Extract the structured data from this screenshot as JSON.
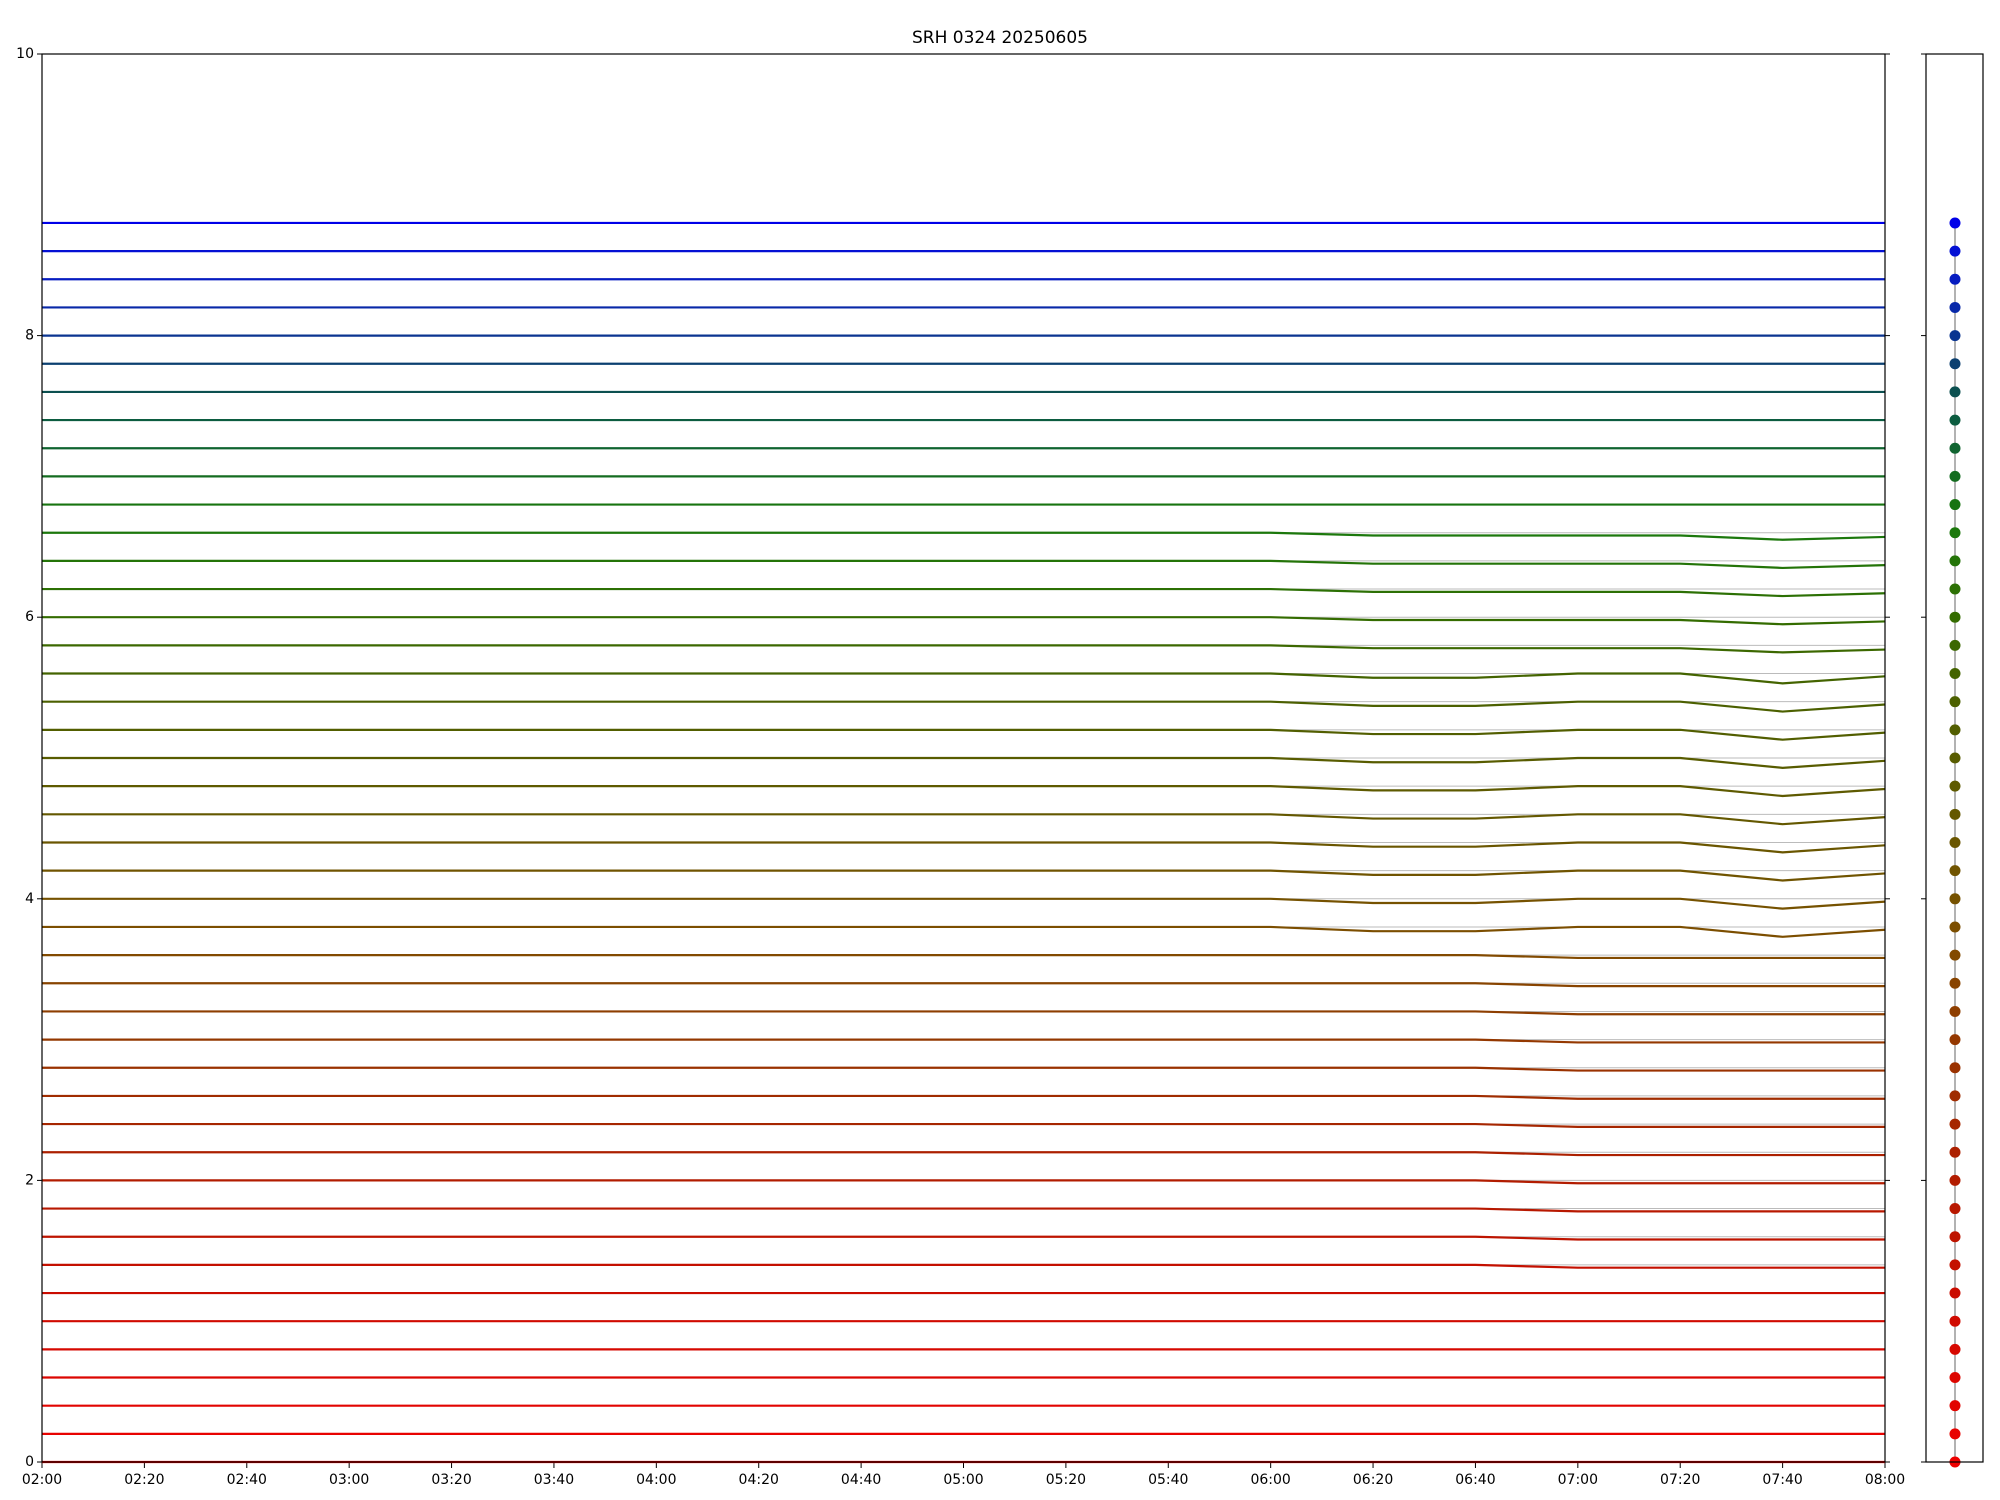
{
  "chart_data": {
    "type": "line",
    "title": "SRH 0324 20250605",
    "categories": [
      "02:00",
      "02:20",
      "02:40",
      "03:00",
      "03:20",
      "03:40",
      "04:00",
      "04:20",
      "04:40",
      "05:00",
      "05:20",
      "05:40",
      "06:00",
      "06:20",
      "06:40",
      "07:00",
      "07:20",
      "07:40",
      "08:00"
    ],
    "ylim": [
      0,
      10
    ],
    "yticks": [
      0,
      2,
      4,
      6,
      8,
      10
    ],
    "grid": true,
    "series": [
      {
        "color": "#ee0000",
        "values": [
          0,
          0,
          0,
          0,
          0,
          0,
          0,
          0,
          0,
          0,
          0,
          0,
          0,
          0,
          0,
          0,
          0,
          0,
          0
        ]
      },
      {
        "color": "#e80200",
        "values": [
          0.2,
          0.2,
          0.2,
          0.2,
          0.2,
          0.2,
          0.2,
          0.2,
          0.2,
          0.2,
          0.2,
          0.2,
          0.2,
          0.2,
          0.2,
          0.2,
          0.2,
          0.2,
          0.2
        ]
      },
      {
        "color": "#e20400",
        "values": [
          0.4,
          0.4,
          0.4,
          0.4,
          0.4,
          0.4,
          0.4,
          0.4,
          0.4,
          0.4,
          0.4,
          0.4,
          0.4,
          0.4,
          0.4,
          0.4,
          0.4,
          0.4,
          0.4
        ]
      },
      {
        "color": "#dc0600",
        "values": [
          0.6,
          0.6,
          0.6,
          0.6,
          0.6,
          0.6,
          0.6,
          0.6,
          0.6,
          0.6,
          0.6,
          0.6,
          0.6,
          0.6,
          0.6,
          0.6,
          0.6,
          0.6,
          0.6
        ]
      },
      {
        "color": "#d60800",
        "values": [
          0.8,
          0.8,
          0.8,
          0.8,
          0.8,
          0.8,
          0.8,
          0.8,
          0.8,
          0.8,
          0.8,
          0.8,
          0.8,
          0.8,
          0.8,
          0.8,
          0.8,
          0.8,
          0.8
        ]
      },
      {
        "color": "#d00a00",
        "values": [
          1,
          1,
          1,
          1,
          1,
          1,
          1,
          1,
          1,
          1,
          1,
          1,
          1,
          1,
          1,
          1,
          1,
          1,
          1
        ]
      },
      {
        "color": "#ca0c00",
        "values": [
          1.2,
          1.2,
          1.2,
          1.2,
          1.2,
          1.2,
          1.2,
          1.2,
          1.2,
          1.2,
          1.2,
          1.2,
          1.2,
          1.2,
          1.2,
          1.2,
          1.2,
          1.2,
          1.2
        ]
      },
      {
        "color": "#c41000",
        "values": [
          1.4,
          1.4,
          1.4,
          1.4,
          1.4,
          1.4,
          1.4,
          1.4,
          1.4,
          1.4,
          1.4,
          1.4,
          1.4,
          1.4,
          1.4,
          1.38,
          1.38,
          1.38,
          1.38
        ]
      },
      {
        "color": "#be1400",
        "values": [
          1.6,
          1.6,
          1.6,
          1.6,
          1.6,
          1.6,
          1.6,
          1.6,
          1.6,
          1.6,
          1.6,
          1.6,
          1.6,
          1.6,
          1.6,
          1.58,
          1.58,
          1.58,
          1.58
        ]
      },
      {
        "color": "#b81800",
        "values": [
          1.8,
          1.8,
          1.8,
          1.8,
          1.8,
          1.8,
          1.8,
          1.8,
          1.8,
          1.8,
          1.8,
          1.8,
          1.8,
          1.8,
          1.8,
          1.78,
          1.78,
          1.78,
          1.78
        ]
      },
      {
        "color": "#b21c00",
        "values": [
          2,
          2,
          2,
          2,
          2,
          2,
          2,
          2,
          2,
          2,
          2,
          2,
          2,
          2,
          2,
          1.98,
          1.98,
          1.98,
          1.98
        ]
      },
      {
        "color": "#ac2000",
        "values": [
          2.2,
          2.2,
          2.2,
          2.2,
          2.2,
          2.2,
          2.2,
          2.2,
          2.2,
          2.2,
          2.2,
          2.2,
          2.2,
          2.2,
          2.2,
          2.18,
          2.18,
          2.18,
          2.18
        ]
      },
      {
        "color": "#a62600",
        "values": [
          2.4,
          2.4,
          2.4,
          2.4,
          2.4,
          2.4,
          2.4,
          2.4,
          2.4,
          2.4,
          2.4,
          2.4,
          2.4,
          2.4,
          2.4,
          2.38,
          2.38,
          2.38,
          2.38
        ]
      },
      {
        "color": "#a02c00",
        "values": [
          2.6,
          2.6,
          2.6,
          2.6,
          2.6,
          2.6,
          2.6,
          2.6,
          2.6,
          2.6,
          2.6,
          2.6,
          2.6,
          2.6,
          2.6,
          2.58,
          2.58,
          2.58,
          2.58
        ]
      },
      {
        "color": "#9a3200",
        "values": [
          2.8,
          2.8,
          2.8,
          2.8,
          2.8,
          2.8,
          2.8,
          2.8,
          2.8,
          2.8,
          2.8,
          2.8,
          2.8,
          2.8,
          2.8,
          2.78,
          2.78,
          2.78,
          2.78
        ]
      },
      {
        "color": "#943800",
        "values": [
          3,
          3,
          3,
          3,
          3,
          3,
          3,
          3,
          3,
          3,
          3,
          3,
          3,
          3,
          3,
          2.98,
          2.98,
          2.98,
          2.98
        ]
      },
      {
        "color": "#8e3e00",
        "values": [
          3.2,
          3.2,
          3.2,
          3.2,
          3.2,
          3.2,
          3.2,
          3.2,
          3.2,
          3.2,
          3.2,
          3.2,
          3.2,
          3.2,
          3.2,
          3.18,
          3.18,
          3.18,
          3.18
        ]
      },
      {
        "color": "#884400",
        "values": [
          3.4,
          3.4,
          3.4,
          3.4,
          3.4,
          3.4,
          3.4,
          3.4,
          3.4,
          3.4,
          3.4,
          3.4,
          3.4,
          3.4,
          3.4,
          3.38,
          3.38,
          3.38,
          3.38
        ]
      },
      {
        "color": "#824a00",
        "values": [
          3.6,
          3.6,
          3.6,
          3.6,
          3.6,
          3.6,
          3.6,
          3.6,
          3.6,
          3.6,
          3.6,
          3.6,
          3.6,
          3.6,
          3.6,
          3.58,
          3.58,
          3.58,
          3.58
        ]
      },
      {
        "color": "#7c4e00",
        "values": [
          3.8,
          3.8,
          3.8,
          3.8,
          3.8,
          3.8,
          3.8,
          3.8,
          3.8,
          3.8,
          3.8,
          3.8,
          3.8,
          3.77,
          3.77,
          3.8,
          3.8,
          3.73,
          3.78
        ]
      },
      {
        "color": "#765200",
        "values": [
          4,
          4,
          4,
          4,
          4,
          4,
          4,
          4,
          4,
          4,
          4,
          4,
          4,
          3.97,
          3.97,
          4,
          4,
          3.93,
          3.98
        ]
      },
      {
        "color": "#705400",
        "values": [
          4.2,
          4.2,
          4.2,
          4.2,
          4.2,
          4.2,
          4.2,
          4.2,
          4.2,
          4.2,
          4.2,
          4.2,
          4.2,
          4.17,
          4.17,
          4.2,
          4.2,
          4.13,
          4.18
        ]
      },
      {
        "color": "#6a5600",
        "values": [
          4.4,
          4.4,
          4.4,
          4.4,
          4.4,
          4.4,
          4.4,
          4.4,
          4.4,
          4.4,
          4.4,
          4.4,
          4.4,
          4.37,
          4.37,
          4.4,
          4.4,
          4.33,
          4.38
        ]
      },
      {
        "color": "#645800",
        "values": [
          4.6,
          4.6,
          4.6,
          4.6,
          4.6,
          4.6,
          4.6,
          4.6,
          4.6,
          4.6,
          4.6,
          4.6,
          4.6,
          4.57,
          4.57,
          4.6,
          4.6,
          4.53,
          4.58
        ]
      },
      {
        "color": "#5e5a00",
        "values": [
          4.8,
          4.8,
          4.8,
          4.8,
          4.8,
          4.8,
          4.8,
          4.8,
          4.8,
          4.8,
          4.8,
          4.8,
          4.8,
          4.77,
          4.77,
          4.8,
          4.8,
          4.73,
          4.78
        ]
      },
      {
        "color": "#585c00",
        "values": [
          5,
          5,
          5,
          5,
          5,
          5,
          5,
          5,
          5,
          5,
          5,
          5,
          5,
          4.97,
          4.97,
          5,
          5,
          4.93,
          4.98
        ]
      },
      {
        "color": "#525e00",
        "values": [
          5.2,
          5.2,
          5.2,
          5.2,
          5.2,
          5.2,
          5.2,
          5.2,
          5.2,
          5.2,
          5.2,
          5.2,
          5.2,
          5.17,
          5.17,
          5.2,
          5.2,
          5.13,
          5.18
        ]
      },
      {
        "color": "#4c6000",
        "values": [
          5.4,
          5.4,
          5.4,
          5.4,
          5.4,
          5.4,
          5.4,
          5.4,
          5.4,
          5.4,
          5.4,
          5.4,
          5.4,
          5.37,
          5.37,
          5.4,
          5.4,
          5.33,
          5.38
        ]
      },
      {
        "color": "#446400",
        "values": [
          5.6,
          5.6,
          5.6,
          5.6,
          5.6,
          5.6,
          5.6,
          5.6,
          5.6,
          5.6,
          5.6,
          5.6,
          5.6,
          5.57,
          5.57,
          5.6,
          5.6,
          5.53,
          5.58
        ]
      },
      {
        "color": "#3c6800",
        "values": [
          5.8,
          5.8,
          5.8,
          5.8,
          5.8,
          5.8,
          5.8,
          5.8,
          5.8,
          5.8,
          5.8,
          5.8,
          5.8,
          5.78,
          5.78,
          5.78,
          5.78,
          5.75,
          5.77
        ]
      },
      {
        "color": "#346c00",
        "values": [
          6,
          6,
          6,
          6,
          6,
          6,
          6,
          6,
          6,
          6,
          6,
          6,
          6,
          5.98,
          5.98,
          5.98,
          5.98,
          5.95,
          5.97
        ]
      },
      {
        "color": "#2c7004",
        "values": [
          6.2,
          6.2,
          6.2,
          6.2,
          6.2,
          6.2,
          6.2,
          6.2,
          6.2,
          6.2,
          6.2,
          6.2,
          6.2,
          6.18,
          6.18,
          6.18,
          6.18,
          6.15,
          6.17
        ]
      },
      {
        "color": "#247408",
        "values": [
          6.4,
          6.4,
          6.4,
          6.4,
          6.4,
          6.4,
          6.4,
          6.4,
          6.4,
          6.4,
          6.4,
          6.4,
          6.4,
          6.38,
          6.38,
          6.38,
          6.38,
          6.35,
          6.37
        ]
      },
      {
        "color": "#1c780c",
        "values": [
          6.6,
          6.6,
          6.6,
          6.6,
          6.6,
          6.6,
          6.6,
          6.6,
          6.6,
          6.6,
          6.6,
          6.6,
          6.6,
          6.58,
          6.58,
          6.58,
          6.58,
          6.55,
          6.57
        ]
      },
      {
        "color": "#187410",
        "values": [
          6.8,
          6.8,
          6.8,
          6.8,
          6.8,
          6.8,
          6.8,
          6.8,
          6.8,
          6.8,
          6.8,
          6.8,
          6.8,
          6.8,
          6.8,
          6.8,
          6.8,
          6.8,
          6.8
        ]
      },
      {
        "color": "#146c20",
        "values": [
          7,
          7,
          7,
          7,
          7,
          7,
          7,
          7,
          7,
          7,
          7,
          7,
          7,
          7,
          7,
          7,
          7,
          7,
          7
        ]
      },
      {
        "color": "#106430",
        "values": [
          7.2,
          7.2,
          7.2,
          7.2,
          7.2,
          7.2,
          7.2,
          7.2,
          7.2,
          7.2,
          7.2,
          7.2,
          7.2,
          7.2,
          7.2,
          7.2,
          7.2,
          7.2,
          7.2
        ]
      },
      {
        "color": "#0c5c40",
        "values": [
          7.4,
          7.4,
          7.4,
          7.4,
          7.4,
          7.4,
          7.4,
          7.4,
          7.4,
          7.4,
          7.4,
          7.4,
          7.4,
          7.4,
          7.4,
          7.4,
          7.4,
          7.4,
          7.4
        ]
      },
      {
        "color": "#0c5050",
        "values": [
          7.6,
          7.6,
          7.6,
          7.6,
          7.6,
          7.6,
          7.6,
          7.6,
          7.6,
          7.6,
          7.6,
          7.6,
          7.6,
          7.6,
          7.6,
          7.6,
          7.6,
          7.6,
          7.6
        ]
      },
      {
        "color": "#0c4070",
        "values": [
          7.8,
          7.8,
          7.8,
          7.8,
          7.8,
          7.8,
          7.8,
          7.8,
          7.8,
          7.8,
          7.8,
          7.8,
          7.8,
          7.8,
          7.8,
          7.8,
          7.8,
          7.8,
          7.8
        ]
      },
      {
        "color": "#0a3490",
        "values": [
          8,
          8,
          8,
          8,
          8,
          8,
          8,
          8,
          8,
          8,
          8,
          8,
          8,
          8,
          8,
          8,
          8,
          8,
          8
        ]
      },
      {
        "color": "#0828a8",
        "values": [
          8.2,
          8.2,
          8.2,
          8.2,
          8.2,
          8.2,
          8.2,
          8.2,
          8.2,
          8.2,
          8.2,
          8.2,
          8.2,
          8.2,
          8.2,
          8.2,
          8.2,
          8.2,
          8.2
        ]
      },
      {
        "color": "#061cc0",
        "values": [
          8.4,
          8.4,
          8.4,
          8.4,
          8.4,
          8.4,
          8.4,
          8.4,
          8.4,
          8.4,
          8.4,
          8.4,
          8.4,
          8.4,
          8.4,
          8.4,
          8.4,
          8.4,
          8.4
        ]
      },
      {
        "color": "#0410d4",
        "values": [
          8.6,
          8.6,
          8.6,
          8.6,
          8.6,
          8.6,
          8.6,
          8.6,
          8.6,
          8.6,
          8.6,
          8.6,
          8.6,
          8.6,
          8.6,
          8.6,
          8.6,
          8.6,
          8.6
        ]
      },
      {
        "color": "#0000e8",
        "values": [
          8.8,
          8.8,
          8.8,
          8.8,
          8.8,
          8.8,
          8.8,
          8.8,
          8.8,
          8.8,
          8.8,
          8.8,
          8.8,
          8.8,
          8.8,
          8.8,
          8.8,
          8.8,
          8.8
        ]
      }
    ]
  }
}
